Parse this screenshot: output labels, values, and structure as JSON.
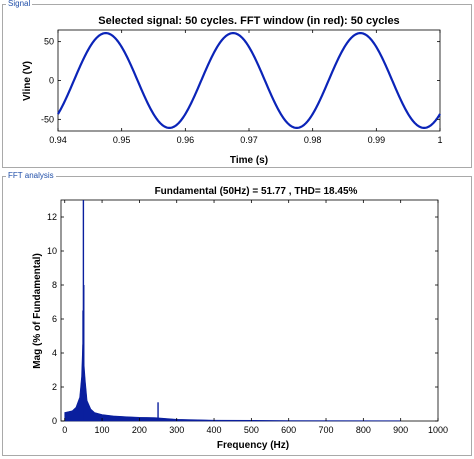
{
  "signal_panel": {
    "legend": "Signal",
    "title": "Selected signal: 50 cycles. FFT window (in red): 50 cycles",
    "xlabel": "Time (s)",
    "ylabel": "Vline (V)",
    "xticks": [
      "0.94",
      "0.95",
      "0.96",
      "0.97",
      "0.98",
      "0.99",
      "1"
    ],
    "yticks": [
      "-50",
      "0",
      "50"
    ]
  },
  "fft_panel": {
    "legend": "FFT analysis",
    "title": "Fundamental (50Hz) = 51.77 , THD= 18.45%",
    "xlabel": "Frequency (Hz)",
    "ylabel": "Mag (% of Fundamental)",
    "xticks": [
      "0",
      "100",
      "200",
      "300",
      "400",
      "500",
      "600",
      "700",
      "800",
      "900",
      "1000"
    ],
    "yticks": [
      "0",
      "2",
      "4",
      "6",
      "8",
      "10",
      "12"
    ]
  },
  "colors": {
    "signal_line": "#0b24b8",
    "fft_bars": "#0a1f9e",
    "panel_border": "#a9a9a9",
    "legend_text": "#1f4ea8"
  },
  "chart_data": [
    {
      "type": "line",
      "title": "Selected signal: 50 cycles. FFT window (in red): 50 cycles",
      "xlabel": "Time (s)",
      "ylabel": "Vline (V)",
      "xlim": [
        0.94,
        1.0
      ],
      "ylim": [
        -65,
        65
      ],
      "grid": false,
      "series": [
        {
          "type": "sine",
          "amplitude": 61,
          "frequency_hz": 50,
          "peak_time": 0.9475
        }
      ]
    },
    {
      "type": "bar",
      "title": "Fundamental (50Hz) = 51.77 , THD= 18.45%",
      "xlabel": "Frequency (Hz)",
      "ylabel": "Mag (% of Fundamental)",
      "xlim": [
        -10,
        1000
      ],
      "ylim": [
        0,
        13
      ],
      "grid": false,
      "peaks": [
        {
          "x": 50,
          "y": 13.0
        },
        {
          "x": 51,
          "y": 8.0
        },
        {
          "x": 49,
          "y": 6.5
        },
        {
          "x": 250,
          "y": 1.1
        }
      ],
      "spectrum": [
        {
          "x": 0,
          "y": 0.5
        },
        {
          "x": 10,
          "y": 0.55
        },
        {
          "x": 20,
          "y": 0.6
        },
        {
          "x": 30,
          "y": 0.8
        },
        {
          "x": 40,
          "y": 1.4
        },
        {
          "x": 45,
          "y": 2.6
        },
        {
          "x": 48,
          "y": 4.5
        },
        {
          "x": 55,
          "y": 2.4
        },
        {
          "x": 60,
          "y": 1.2
        },
        {
          "x": 70,
          "y": 0.7
        },
        {
          "x": 80,
          "y": 0.5
        },
        {
          "x": 100,
          "y": 0.38
        },
        {
          "x": 130,
          "y": 0.3
        },
        {
          "x": 170,
          "y": 0.25
        },
        {
          "x": 200,
          "y": 0.22
        },
        {
          "x": 240,
          "y": 0.2
        },
        {
          "x": 300,
          "y": 0.1
        },
        {
          "x": 400,
          "y": 0.05
        },
        {
          "x": 600,
          "y": 0.03
        },
        {
          "x": 900,
          "y": 0.02
        }
      ]
    }
  ]
}
